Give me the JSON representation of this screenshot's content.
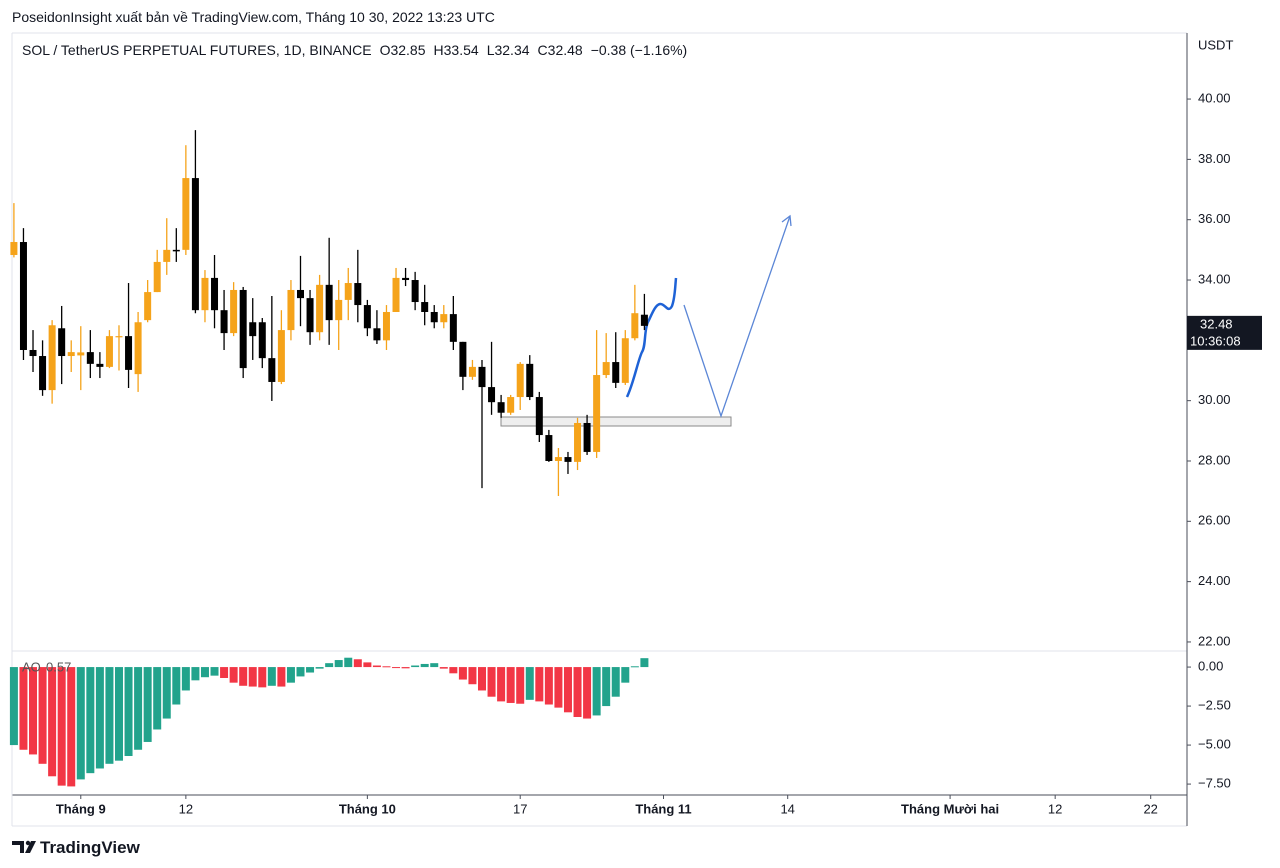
{
  "attribution": "PoseidonInsight xuất bản về TradingView.com, Tháng 10 30, 2022 13:23 UTC",
  "footer_brand": "TradingView",
  "chart_data": [
    {
      "type": "candlestick",
      "title": "SOL / TetherUS PERPETUAL FUTURES, 1D, BINANCE",
      "ohlc_keys": [
        "O",
        "H",
        "L",
        "C"
      ],
      "change_label": "−0.38 (−1.16%)",
      "y_axis_label": "USDT",
      "countdown": "10:36:08",
      "up_color": "#f5a31a",
      "down_color": "#000000",
      "x": [
        0,
        1,
        2,
        3,
        4,
        5,
        6,
        7,
        8,
        9,
        10,
        11,
        12,
        13,
        14,
        15,
        16,
        17,
        18,
        19,
        20,
        21,
        22,
        23,
        24,
        25,
        26,
        27,
        28,
        29,
        30,
        31,
        32,
        33,
        34,
        35,
        36,
        37,
        38,
        39,
        40,
        41,
        42,
        43,
        44,
        45,
        46,
        47,
        48,
        49,
        50,
        51,
        52,
        53,
        54,
        55,
        56,
        57,
        58,
        59,
        60,
        61,
        62,
        63,
        64,
        65,
        66
      ],
      "open": [
        34.83,
        35.26,
        31.68,
        31.48,
        30.35,
        32.4,
        31.48,
        31.5,
        31.61,
        31.22,
        31.12,
        32.1,
        32.14,
        30.88,
        32.67,
        33.6,
        34.6,
        35.0,
        35.0,
        37.38,
        33.0,
        34.07,
        33.0,
        32.24,
        33.67,
        32.6,
        32.6,
        31.41,
        30.62,
        32.34,
        33.67,
        33.4,
        32.27,
        33.84,
        32.67,
        33.34,
        33.9,
        33.17,
        32.4,
        32.0,
        32.94,
        34.07,
        34.0,
        33.27,
        32.94,
        32.6,
        32.87,
        31.95,
        30.79,
        31.12,
        30.45,
        29.95,
        29.6,
        30.12,
        31.22,
        30.12,
        28.86,
        28.0,
        28.13,
        27.97,
        29.26,
        28.3,
        30.85,
        31.28,
        30.59,
        32.07,
        32.85
      ],
      "high": [
        36.55,
        35.72,
        32.34,
        32.0,
        32.67,
        33.14,
        32.0,
        32.47,
        32.34,
        31.61,
        32.34,
        32.5,
        33.9,
        32.94,
        34.0,
        35.0,
        36.05,
        35.72,
        38.47,
        38.97,
        34.33,
        34.83,
        33.67,
        33.93,
        33.77,
        33.4,
        32.74,
        33.47,
        33.0,
        34.0,
        34.8,
        33.67,
        34.17,
        35.4,
        34.0,
        34.4,
        35.0,
        33.34,
        33.0,
        33.17,
        34.4,
        34.4,
        34.27,
        33.84,
        33.17,
        33.17,
        33.47,
        31.95,
        31.35,
        31.35,
        31.95,
        30.19,
        30.19,
        31.28,
        31.51,
        30.29,
        29.03,
        28.43,
        28.3,
        29.43,
        29.53,
        32.34,
        32.24,
        32.27,
        32.34,
        33.84,
        33.54
      ],
      "low": [
        34.75,
        31.35,
        30.95,
        30.16,
        29.9,
        30.55,
        30.95,
        30.35,
        30.75,
        30.75,
        31.08,
        31.0,
        30.42,
        30.29,
        32.6,
        33.6,
        34.17,
        34.6,
        34.83,
        32.9,
        32.6,
        32.4,
        31.68,
        32.14,
        30.75,
        31.35,
        31.08,
        29.99,
        30.55,
        32.0,
        32.47,
        31.85,
        32.0,
        31.85,
        31.68,
        32.67,
        32.6,
        32.14,
        31.88,
        31.68,
        32.94,
        33.8,
        33.0,
        32.5,
        32.4,
        32.4,
        31.68,
        30.35,
        30.69,
        27.1,
        29.53,
        29.43,
        29.53,
        29.69,
        30.02,
        28.63,
        27.97,
        26.84,
        27.57,
        27.7,
        28.2,
        28.1,
        30.75,
        30.42,
        30.52,
        32.0,
        32.34
      ],
      "close": [
        35.26,
        31.68,
        31.48,
        30.35,
        32.5,
        31.48,
        31.61,
        31.6,
        31.22,
        31.12,
        32.14,
        32.14,
        31.02,
        32.6,
        33.6,
        34.6,
        35.0,
        34.95,
        37.38,
        33.0,
        34.07,
        33.0,
        32.24,
        33.67,
        31.08,
        32.14,
        31.41,
        30.62,
        32.34,
        33.67,
        33.4,
        32.27,
        33.84,
        32.67,
        33.34,
        33.9,
        33.17,
        32.4,
        32.0,
        32.94,
        34.07,
        34.0,
        33.27,
        32.94,
        32.6,
        32.87,
        31.95,
        30.79,
        31.12,
        30.45,
        29.95,
        29.6,
        30.12,
        31.22,
        30.12,
        28.86,
        28.0,
        28.13,
        27.97,
        29.26,
        28.3,
        30.85,
        31.28,
        30.59,
        32.07,
        32.9,
        32.48
      ],
      "xlim": [
        -0.2,
        122.8
      ],
      "xticks": [
        {
          "value": 7,
          "label": "Tháng 9"
        },
        {
          "value": 18,
          "label": "12"
        },
        {
          "value": 37,
          "label": "Tháng 10"
        },
        {
          "value": 53,
          "label": "17"
        },
        {
          "value": 68,
          "label": "Tháng 11"
        },
        {
          "value": 81,
          "label": "14"
        },
        {
          "value": 98,
          "label": "Tháng Mười hai"
        },
        {
          "value": 109,
          "label": "12"
        },
        {
          "value": 119,
          "label": "22"
        }
      ],
      "ylim": [
        21.7,
        42.19
      ],
      "yticks": [
        {
          "value": 22,
          "label": "22.00"
        },
        {
          "value": 24,
          "label": "24.00"
        },
        {
          "value": 26,
          "label": "26.00"
        },
        {
          "value": 28,
          "label": "28.00"
        },
        {
          "value": 30,
          "label": "30.00"
        },
        {
          "value": 32,
          "label": "32.00"
        },
        {
          "value": 34,
          "label": "34.00"
        },
        {
          "value": 36,
          "label": "36.00"
        },
        {
          "value": 38,
          "label": "38.00"
        },
        {
          "value": 40,
          "label": "40.00"
        }
      ]
    },
    {
      "type": "bar",
      "title": "AO",
      "up_color": "#22a38c",
      "down_color": "#f23645",
      "x": [
        0,
        1,
        2,
        3,
        4,
        5,
        6,
        7,
        8,
        9,
        10,
        11,
        12,
        13,
        14,
        15,
        16,
        17,
        18,
        19,
        20,
        21,
        22,
        23,
        24,
        25,
        26,
        27,
        28,
        29,
        30,
        31,
        32,
        33,
        34,
        35,
        36,
        37,
        38,
        39,
        40,
        41,
        42,
        43,
        44,
        45,
        46,
        47,
        48,
        49,
        50,
        51,
        52,
        53,
        54,
        55,
        56,
        57,
        58,
        59,
        60,
        61,
        62,
        63,
        64,
        65,
        66
      ],
      "values": [
        -5.0,
        -5.3,
        -5.6,
        -6.2,
        -7.0,
        -7.6,
        -7.65,
        -7.2,
        -6.8,
        -6.5,
        -6.2,
        -6.0,
        -5.7,
        -5.3,
        -4.8,
        -4.0,
        -3.3,
        -2.4,
        -1.5,
        -0.85,
        -0.65,
        -0.55,
        -0.7,
        -1.0,
        -1.2,
        -1.25,
        -1.3,
        -1.2,
        -1.25,
        -1.0,
        -0.6,
        -0.35,
        -0.1,
        0.25,
        0.45,
        0.6,
        0.5,
        0.3,
        0.1,
        0.05,
        -0.05,
        -0.08,
        0.1,
        0.2,
        0.25,
        -0.1,
        -0.4,
        -0.8,
        -1.1,
        -1.5,
        -1.9,
        -2.2,
        -2.3,
        -2.35,
        -2.1,
        -2.2,
        -2.4,
        -2.6,
        -2.9,
        -3.2,
        -3.3,
        -3.1,
        -2.5,
        -1.9,
        -1.0,
        0.05,
        0.57
      ],
      "xlim": [
        -0.2,
        122.8
      ],
      "ylim": [
        -8.2,
        1.03
      ],
      "yticks": [
        {
          "value": 0,
          "label": "0.00"
        },
        {
          "value": -2.5,
          "label": "−2.50"
        },
        {
          "value": -5,
          "label": "−5.00"
        },
        {
          "value": -7.5,
          "label": "−7.50"
        }
      ]
    }
  ]
}
